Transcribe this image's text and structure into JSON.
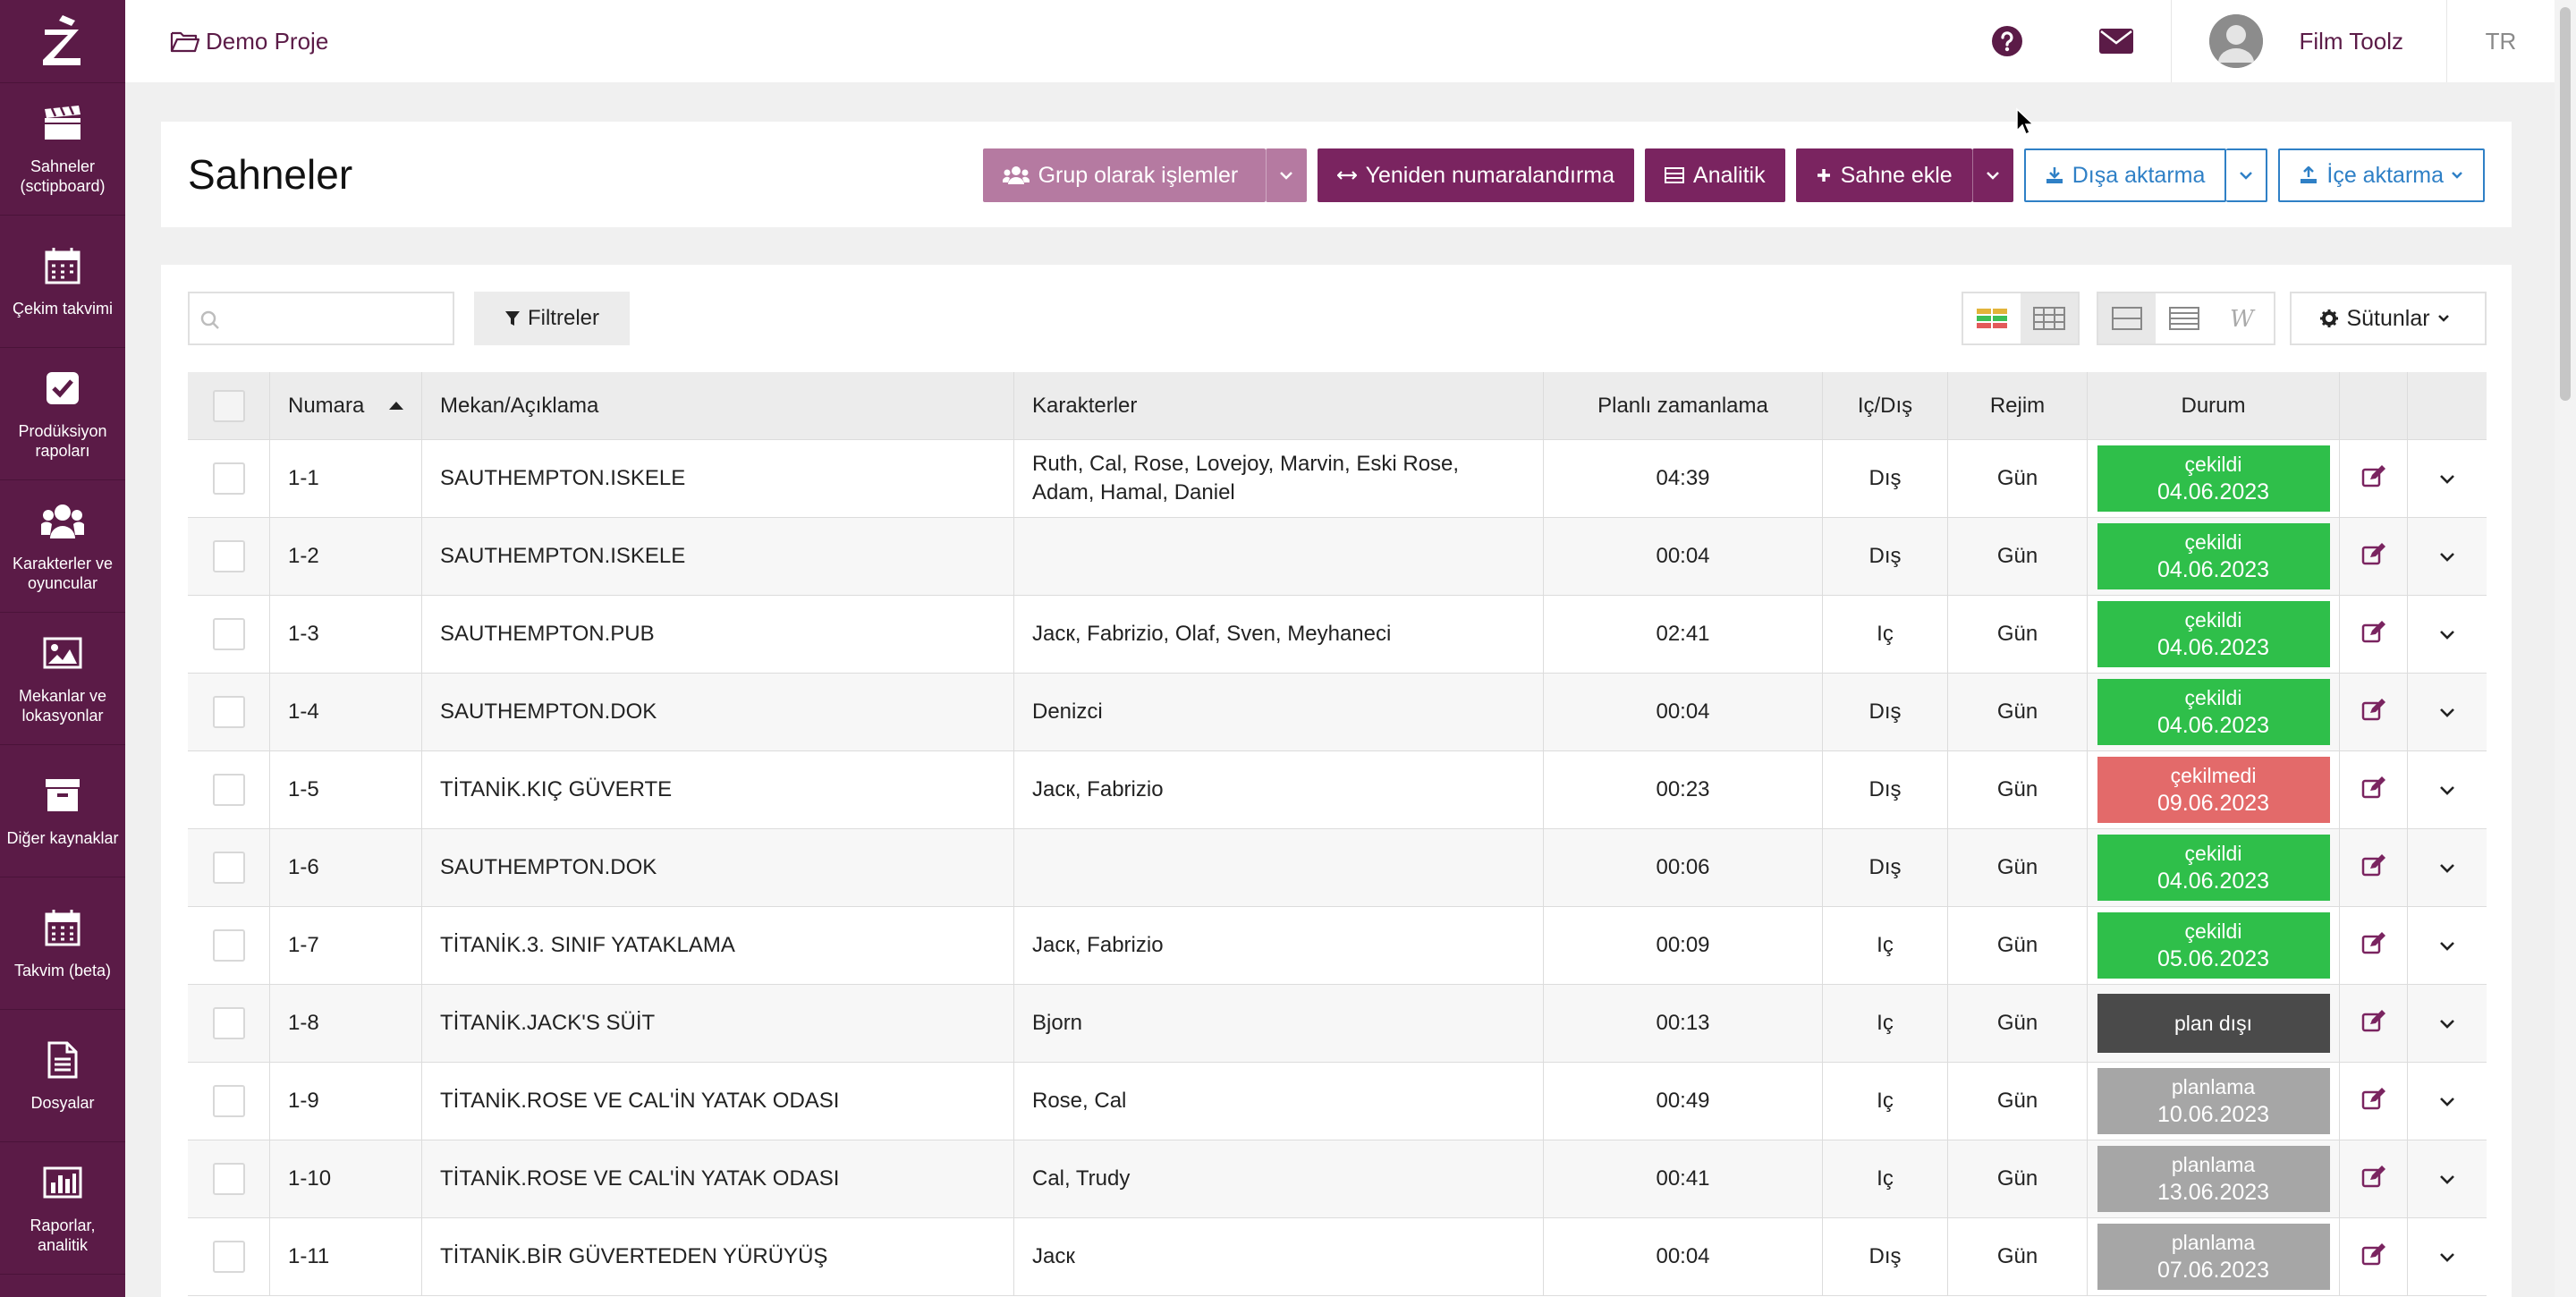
{
  "app": {
    "logo_letter": "Z",
    "brand_color": "#5b1b47",
    "project": "Demo Proje",
    "user_name": "Film Toolz",
    "lang": "TR"
  },
  "sidebar": {
    "items": [
      {
        "label": "Sahneler (sctipboard)",
        "icon": "clapperboard-icon"
      },
      {
        "label": "Çekim takvimi",
        "icon": "calendar-icon"
      },
      {
        "label": "Prodüksiyon rapoları",
        "icon": "check-square-icon"
      },
      {
        "label": "Karakterler ve oyuncular",
        "icon": "users-icon"
      },
      {
        "label": "Mekanlar ve lokasyonlar",
        "icon": "image-icon"
      },
      {
        "label": "Diğer kaynaklar",
        "icon": "archive-icon"
      },
      {
        "label": "Takvim (beta)",
        "icon": "calendar-grid-icon"
      },
      {
        "label": "Dosyalar",
        "icon": "file-icon"
      },
      {
        "label": "Raporlar, analitik",
        "icon": "bar-chart-icon"
      }
    ]
  },
  "page": {
    "title": "Sahneler",
    "buttons": {
      "group": "Grup olarak işlemler",
      "renumber": "Yeniden numaralandırma",
      "analytics": "Analitik",
      "add_scene": "Sahne ekle",
      "export": "Dışa aktarma",
      "import": "İçe aktarma"
    }
  },
  "toolbar": {
    "search_placeholder": "",
    "filters": "Filtreler",
    "columns": "Sütunlar"
  },
  "table": {
    "headers": {
      "number": "Numara",
      "location": "Mekan/Açıklama",
      "characters": "Karakterler",
      "planned": "Planlı zamanlama",
      "io": "Iç/Dış",
      "regime": "Rejim",
      "status": "Durum"
    },
    "status_colors": {
      "green": "#2fbf4a",
      "red": "#e36a6a",
      "dark": "#4a4a4a",
      "grey": "#a6a6a6"
    },
    "rows": [
      {
        "num": "1-1",
        "loc": "SAUTHEMPTON.ISKELE",
        "chars": "Ruth, Cal, Rose, Lovejoy, Marvin, Eski Rose, Adam, Hamal, Daniel",
        "time": "04:39",
        "io": "Dış",
        "reg": "Gün",
        "status": "çekildi",
        "date": "04.06.2023"
      },
      {
        "num": "1-2",
        "loc": "SAUTHEMPTON.ISKELE",
        "chars": "",
        "time": "00:04",
        "io": "Dış",
        "reg": "Gün",
        "status": "çekildi",
        "date": "04.06.2023"
      },
      {
        "num": "1-3",
        "loc": "SAUTHEMPTON.PUB",
        "chars": "Jacк, Fabrizio, Olaf, Sven, Meyhaneci",
        "time": "02:41",
        "io": "Iç",
        "reg": "Gün",
        "status": "çekildi",
        "date": "04.06.2023"
      },
      {
        "num": "1-4",
        "loc": "SAUTHEMPTON.DOK",
        "chars": "Denizci",
        "time": "00:04",
        "io": "Dış",
        "reg": "Gün",
        "status": "çekildi",
        "date": "04.06.2023"
      },
      {
        "num": "1-5",
        "loc": "TİTANİK.KIÇ GÜVERTE",
        "chars": "Jacк, Fabrizio",
        "time": "00:23",
        "io": "Dış",
        "reg": "Gün",
        "status": "çekilmedi",
        "date": "09.06.2023"
      },
      {
        "num": "1-6",
        "loc": "SAUTHEMPTON.DOK",
        "chars": "",
        "time": "00:06",
        "io": "Dış",
        "reg": "Gün",
        "status": "çekildi",
        "date": "04.06.2023"
      },
      {
        "num": "1-7",
        "loc": "TİTANİK.3. SINIF YATAKLAMA",
        "chars": "Jacк, Fabrizio",
        "time": "00:09",
        "io": "Iç",
        "reg": "Gün",
        "status": "çekildi",
        "date": "05.06.2023"
      },
      {
        "num": "1-8",
        "loc": "TİTANİK.JACK'S SÜİT",
        "chars": "Bjorn",
        "time": "00:13",
        "io": "Iç",
        "reg": "Gün",
        "status": "plan dışı",
        "date": ""
      },
      {
        "num": "1-9",
        "loc": "TİTANİK.ROSE VE CAL'İN YATAK ODASI",
        "chars": "Rose, Cal",
        "time": "00:49",
        "io": "Iç",
        "reg": "Gün",
        "status": "planlama",
        "date": "10.06.2023"
      },
      {
        "num": "1-10",
        "loc": "TİTANİK.ROSE VE CAL'İN YATAK ODASI",
        "chars": "Cal, Trudy",
        "time": "00:41",
        "io": "Iç",
        "reg": "Gün",
        "status": "planlama",
        "date": "13.06.2023"
      },
      {
        "num": "1-11",
        "loc": "TİTANİK.BİR GÜVERTEDEN YÜRÜYÜŞ",
        "chars": "Jacк",
        "time": "00:04",
        "io": "Dış",
        "reg": "Gün",
        "status": "planlama",
        "date": "07.06.2023"
      }
    ]
  }
}
